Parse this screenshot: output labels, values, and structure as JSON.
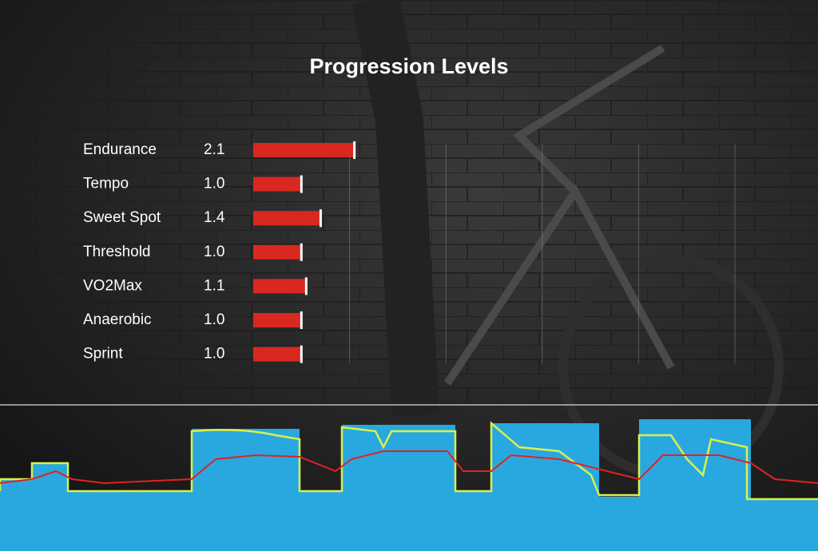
{
  "chart_data": {
    "type": "bar",
    "orientation": "horizontal",
    "title": "Progression Levels",
    "categories": [
      "Endurance",
      "Tempo",
      "Sweet Spot",
      "Threshold",
      "VO2Max",
      "Anaerobic",
      "Sprint"
    ],
    "values": [
      2.1,
      1.0,
      1.4,
      1.0,
      1.1,
      1.0,
      1.0
    ],
    "value_labels": [
      "2.1",
      "1.0",
      "1.4",
      "1.0",
      "1.1",
      "1.0",
      "1.0"
    ],
    "color": "#d9281f",
    "xlim": [
      0,
      10
    ],
    "xticks": [
      2,
      4,
      6,
      8,
      10
    ],
    "grid": true
  }
}
